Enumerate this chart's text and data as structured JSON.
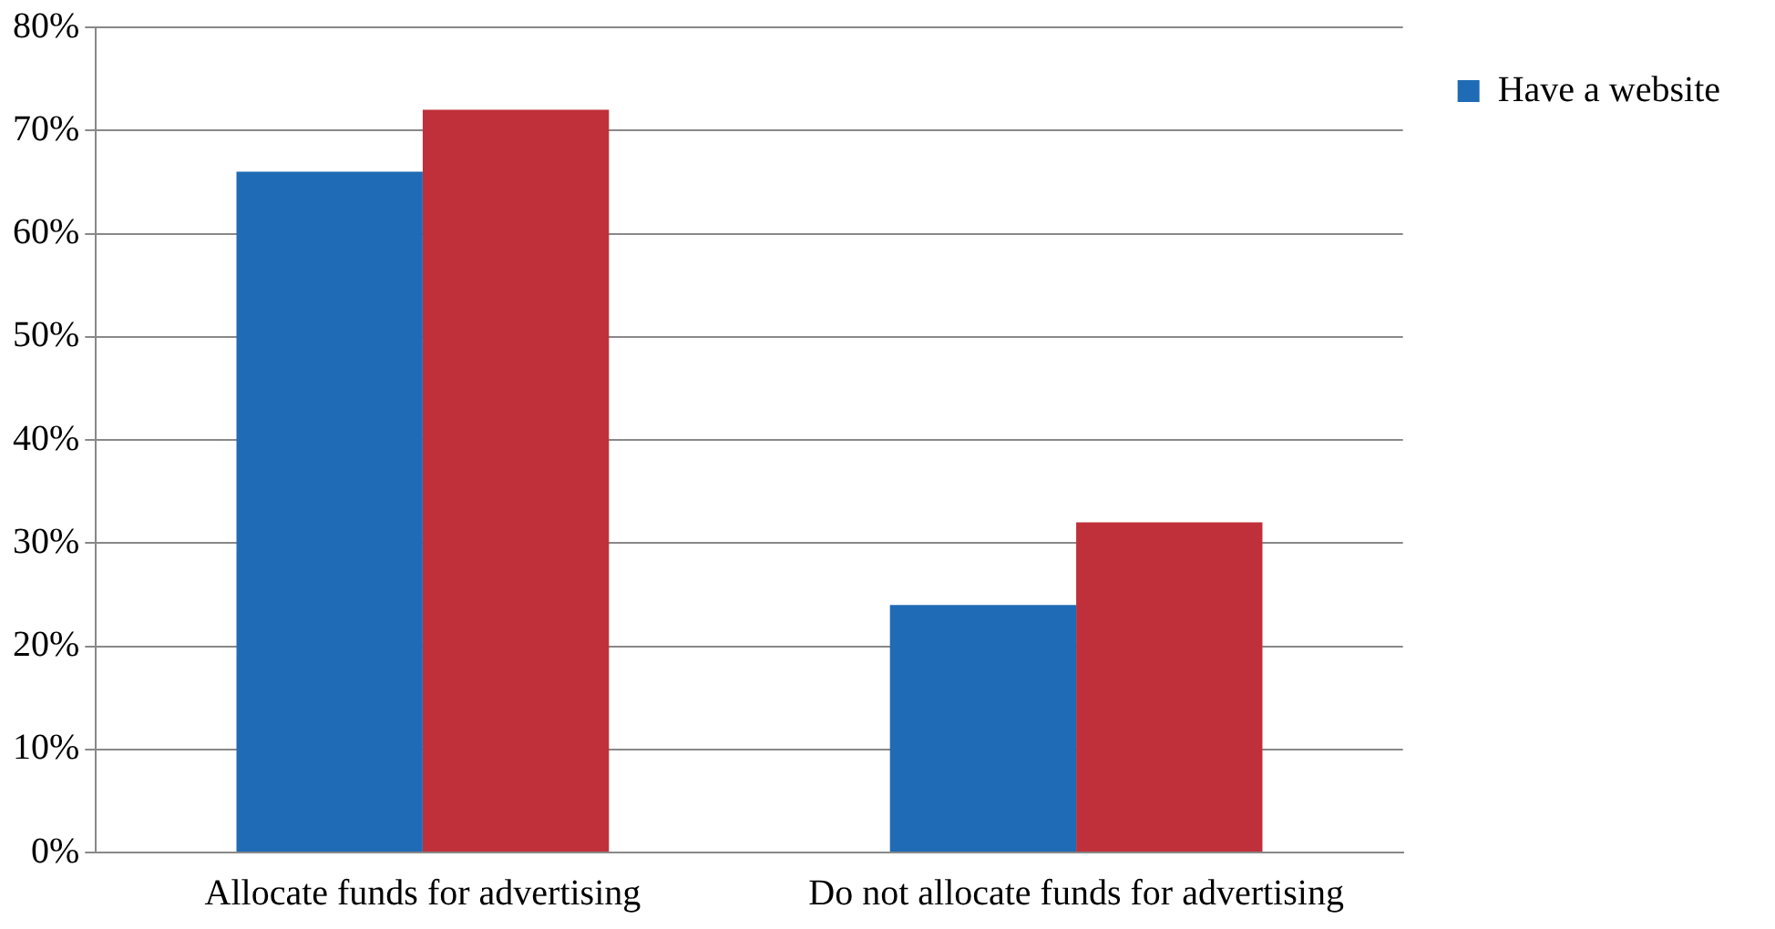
{
  "chart_data": {
    "type": "bar",
    "categories": [
      "Allocate funds for advertising",
      "Do not allocate funds for advertising"
    ],
    "series": [
      {
        "name": "Have a website",
        "color": "#1f6bb5",
        "values": [
          66,
          24
        ]
      },
      {
        "color": "#c0303a",
        "values": [
          72,
          32
        ]
      }
    ],
    "ylim": [
      0,
      80
    ],
    "yticks": [
      {
        "value": 0,
        "label": "0%"
      },
      {
        "value": 10,
        "label": "10%"
      },
      {
        "value": 20,
        "label": "20%"
      },
      {
        "value": 30,
        "label": "30%"
      },
      {
        "value": 40,
        "label": "40%"
      },
      {
        "value": 50,
        "label": "50%"
      },
      {
        "value": 60,
        "label": "60%"
      },
      {
        "value": 70,
        "label": "70%"
      },
      {
        "value": 80,
        "label": "80%"
      }
    ],
    "grid": "y",
    "legend": "top right"
  }
}
